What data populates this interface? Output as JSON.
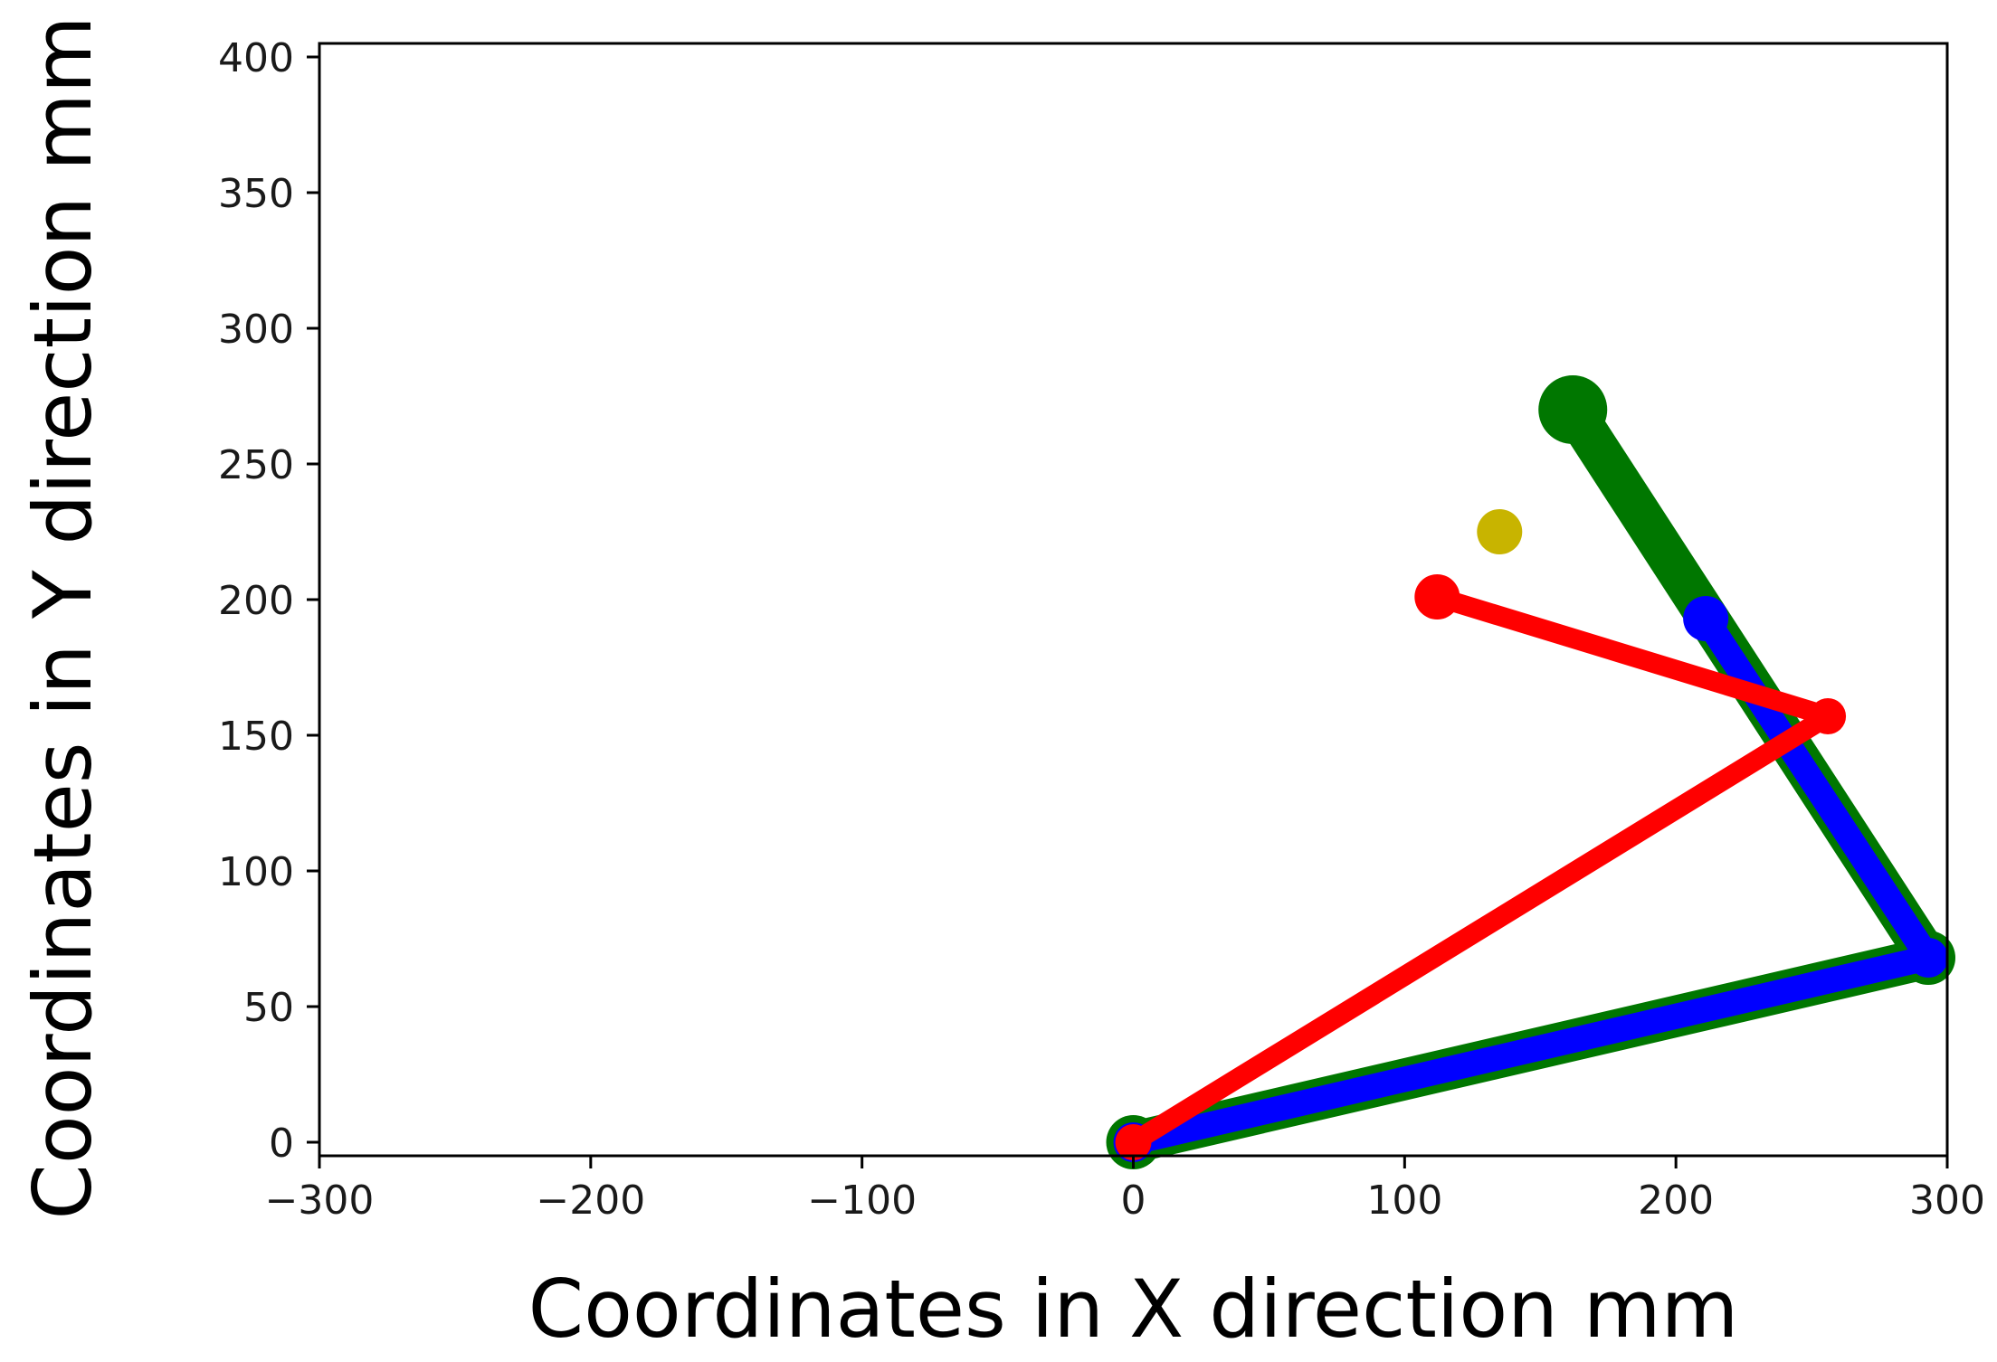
{
  "chart_data": {
    "type": "line",
    "title": "",
    "xlabel": "Coordinates in X direction mm",
    "ylabel": "Coordinates in Y direction mm",
    "xlim": [
      -300,
      300
    ],
    "ylim": [
      -5,
      405
    ],
    "xticks": [
      -300,
      -200,
      -100,
      0,
      100,
      200,
      300
    ],
    "xtick_labels": [
      "−300",
      "−200",
      "−100",
      "0",
      "100",
      "200",
      "300"
    ],
    "yticks": [
      0,
      50,
      100,
      150,
      200,
      250,
      300,
      350,
      400
    ],
    "ytick_labels": [
      "0",
      "50",
      "100",
      "150",
      "200",
      "250",
      "300",
      "350",
      "400"
    ],
    "grid": false,
    "legend": "none",
    "series": [
      {
        "color": "#007700",
        "x": [
          0,
          293,
          162
        ],
        "y": [
          0,
          68,
          270
        ],
        "line_width": "thick",
        "end_marker": "large"
      },
      {
        "color": "#0000ff",
        "x": [
          0,
          293,
          211
        ],
        "y": [
          0,
          68,
          193
        ],
        "line_width": "medium",
        "end_marker": "medium"
      },
      {
        "color": "#ff0000",
        "x": [
          0,
          256,
          112
        ],
        "y": [
          0,
          157,
          201
        ],
        "line_width": "thin",
        "end_marker": "medium"
      }
    ],
    "points": [
      {
        "color": "#c8b400",
        "x": [
          135
        ],
        "y": [
          225
        ]
      }
    ]
  }
}
